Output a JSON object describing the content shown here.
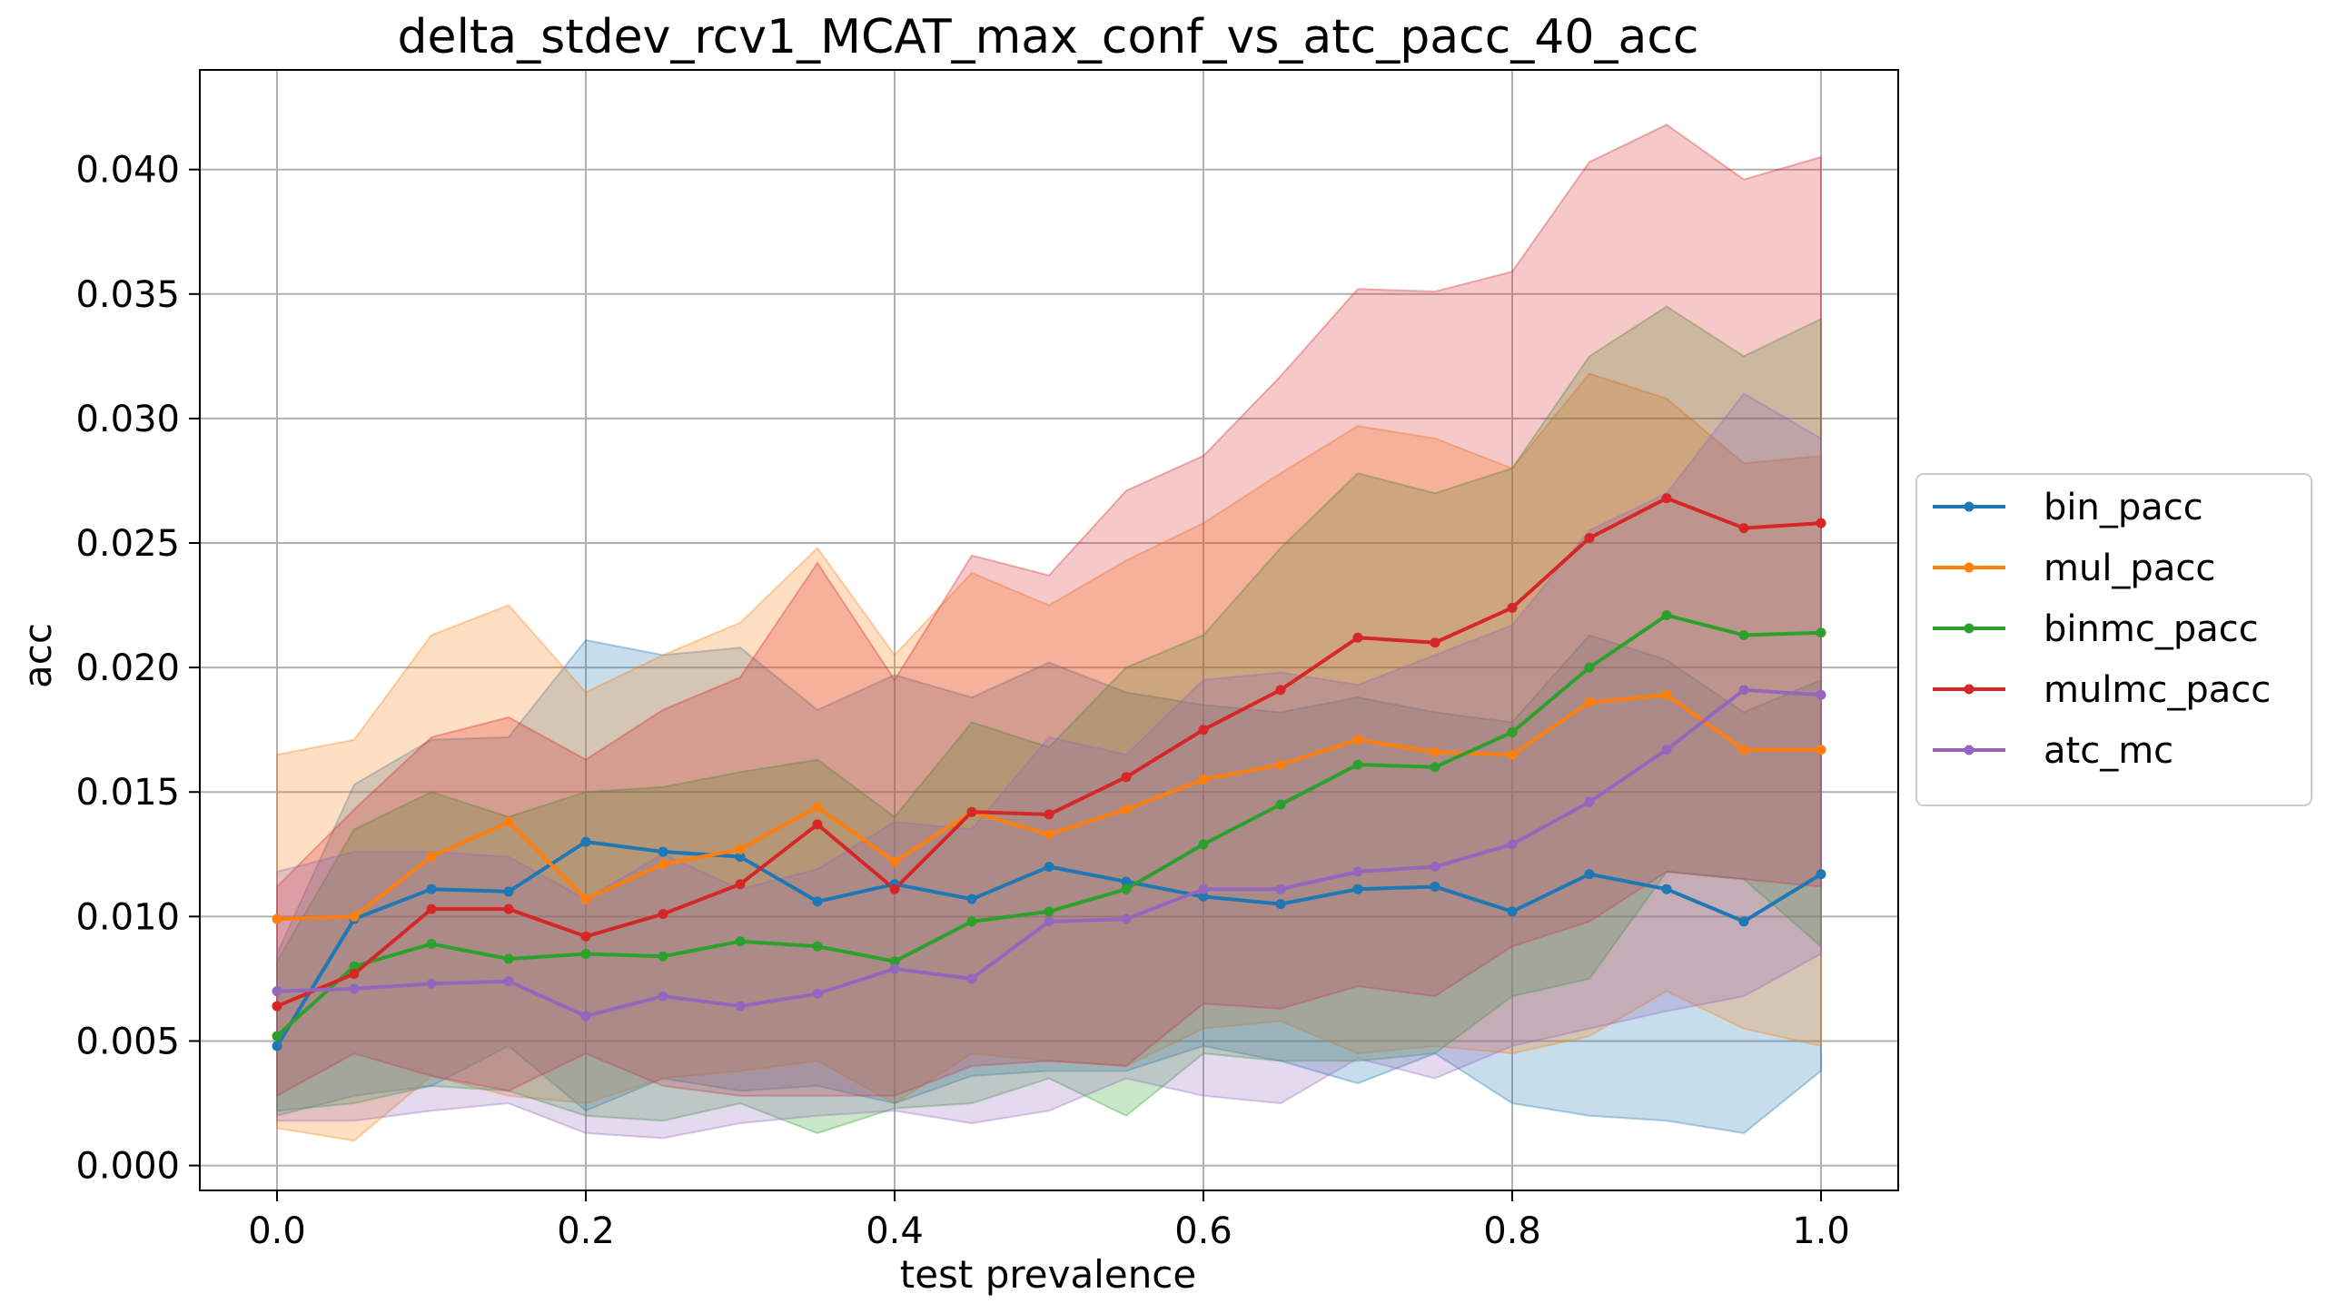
{
  "chart_data": {
    "type": "line",
    "title": "delta_stdev_rcv1_MCAT_max_conf_vs_atc_pacc_40_acc",
    "xlabel": "test prevalence",
    "ylabel": "acc",
    "xlim": [
      -0.05,
      1.05
    ],
    "ylim": [
      -0.001,
      0.044
    ],
    "xticks": [
      0.0,
      0.2,
      0.4,
      0.6,
      0.8,
      1.0
    ],
    "xtick_labels": [
      "0.0",
      "0.2",
      "0.4",
      "0.6",
      "0.8",
      "1.0"
    ],
    "yticks": [
      0.0,
      0.005,
      0.01,
      0.015,
      0.02,
      0.025,
      0.03,
      0.035,
      0.04
    ],
    "ytick_labels": [
      "0.000",
      "0.005",
      "0.010",
      "0.015",
      "0.020",
      "0.025",
      "0.030",
      "0.035",
      "0.040"
    ],
    "grid": true,
    "legend_position": "right, outside",
    "x": [
      0.0,
      0.05,
      0.1,
      0.15,
      0.2,
      0.25,
      0.3,
      0.35,
      0.4,
      0.45,
      0.5,
      0.55,
      0.6,
      0.65,
      0.7,
      0.75,
      0.8,
      0.85,
      0.9,
      0.95,
      1.0
    ],
    "series": [
      {
        "name": "bin_pacc",
        "color": "#1f77b4",
        "values": [
          0.0048,
          0.0099,
          0.0111,
          0.011,
          0.013,
          0.0126,
          0.0124,
          0.0106,
          0.0113,
          0.0107,
          0.012,
          0.0114,
          0.0108,
          0.0105,
          0.0111,
          0.0112,
          0.0102,
          0.0117,
          0.0111,
          0.0098,
          0.0117
        ],
        "lower": [
          0.002,
          0.0028,
          0.0032,
          0.0048,
          0.0022,
          0.0035,
          0.003,
          0.0032,
          0.0025,
          0.0036,
          0.0038,
          0.0038,
          0.0048,
          0.0042,
          0.0033,
          0.0045,
          0.0025,
          0.002,
          0.0018,
          0.0013,
          0.0038
        ],
        "upper": [
          0.0085,
          0.0153,
          0.0171,
          0.0172,
          0.0211,
          0.0205,
          0.0208,
          0.0183,
          0.0197,
          0.0188,
          0.0202,
          0.019,
          0.0185,
          0.0182,
          0.0188,
          0.0182,
          0.0178,
          0.0213,
          0.0203,
          0.0182,
          0.0195
        ]
      },
      {
        "name": "mul_pacc",
        "color": "#ff7f0e",
        "values": [
          0.0099,
          0.01,
          0.0124,
          0.0138,
          0.0107,
          0.0121,
          0.0127,
          0.0144,
          0.0122,
          0.0142,
          0.0133,
          0.0143,
          0.0155,
          0.0161,
          0.0171,
          0.0166,
          0.0165,
          0.0186,
          0.0189,
          0.0167,
          0.0167
        ],
        "lower": [
          0.0015,
          0.001,
          0.0036,
          0.0028,
          0.0025,
          0.0035,
          0.0038,
          0.0042,
          0.0025,
          0.0045,
          0.0042,
          0.004,
          0.0055,
          0.0058,
          0.0045,
          0.0048,
          0.0045,
          0.0052,
          0.007,
          0.0055,
          0.0048
        ],
        "upper": [
          0.0165,
          0.0171,
          0.0213,
          0.0225,
          0.019,
          0.0205,
          0.0218,
          0.0248,
          0.0205,
          0.0238,
          0.0225,
          0.0243,
          0.0258,
          0.0278,
          0.0297,
          0.0292,
          0.028,
          0.0318,
          0.0308,
          0.0282,
          0.0285
        ]
      },
      {
        "name": "binmc_pacc",
        "color": "#2ca02c",
        "values": [
          0.0052,
          0.008,
          0.0089,
          0.0083,
          0.0085,
          0.0084,
          0.009,
          0.0088,
          0.0082,
          0.0098,
          0.0102,
          0.0111,
          0.0129,
          0.0145,
          0.0161,
          0.016,
          0.0174,
          0.02,
          0.0221,
          0.0213,
          0.0214
        ],
        "lower": [
          0.0022,
          0.0025,
          0.0032,
          0.003,
          0.002,
          0.0018,
          0.0025,
          0.0013,
          0.0023,
          0.0025,
          0.0035,
          0.002,
          0.0045,
          0.0042,
          0.0042,
          0.0045,
          0.0068,
          0.0075,
          0.0118,
          0.0115,
          0.0088
        ],
        "upper": [
          0.0082,
          0.0135,
          0.015,
          0.014,
          0.015,
          0.0152,
          0.0158,
          0.0163,
          0.014,
          0.0178,
          0.0168,
          0.02,
          0.0213,
          0.0248,
          0.0278,
          0.027,
          0.028,
          0.0325,
          0.0345,
          0.0325,
          0.034
        ]
      },
      {
        "name": "mulmc_pacc",
        "color": "#d62728",
        "values": [
          0.0064,
          0.0077,
          0.0103,
          0.0103,
          0.0092,
          0.0101,
          0.0113,
          0.0137,
          0.0111,
          0.0142,
          0.0141,
          0.0156,
          0.0175,
          0.0191,
          0.0212,
          0.021,
          0.0224,
          0.0252,
          0.0268,
          0.0256,
          0.0258
        ],
        "lower": [
          0.0028,
          0.0045,
          0.0036,
          0.003,
          0.0045,
          0.0032,
          0.0028,
          0.0028,
          0.0028,
          0.004,
          0.0042,
          0.004,
          0.0065,
          0.0063,
          0.0072,
          0.0068,
          0.0088,
          0.0098,
          0.0118,
          0.0115,
          0.0112
        ],
        "upper": [
          0.0112,
          0.0143,
          0.0172,
          0.018,
          0.0163,
          0.0183,
          0.0196,
          0.0242,
          0.0195,
          0.0245,
          0.0237,
          0.0271,
          0.0285,
          0.0317,
          0.0352,
          0.0351,
          0.0359,
          0.0403,
          0.0418,
          0.0396,
          0.0405
        ]
      },
      {
        "name": "atc_mc",
        "color": "#9467bd",
        "values": [
          0.007,
          0.0071,
          0.0073,
          0.0074,
          0.006,
          0.0068,
          0.0064,
          0.0069,
          0.0079,
          0.0075,
          0.0098,
          0.0099,
          0.0111,
          0.0111,
          0.0118,
          0.012,
          0.0129,
          0.0146,
          0.0167,
          0.0191,
          0.0189
        ],
        "lower": [
          0.0018,
          0.0018,
          0.0022,
          0.0025,
          0.0013,
          0.0011,
          0.0017,
          0.002,
          0.0022,
          0.0017,
          0.0022,
          0.0035,
          0.0028,
          0.0025,
          0.0043,
          0.0035,
          0.0048,
          0.0055,
          0.0062,
          0.0068,
          0.0085
        ],
        "upper": [
          0.0118,
          0.0126,
          0.0126,
          0.0124,
          0.0107,
          0.0125,
          0.0111,
          0.0119,
          0.0138,
          0.0135,
          0.0172,
          0.0165,
          0.0195,
          0.0198,
          0.0193,
          0.0205,
          0.0217,
          0.0255,
          0.027,
          0.031,
          0.0292
        ]
      }
    ]
  }
}
